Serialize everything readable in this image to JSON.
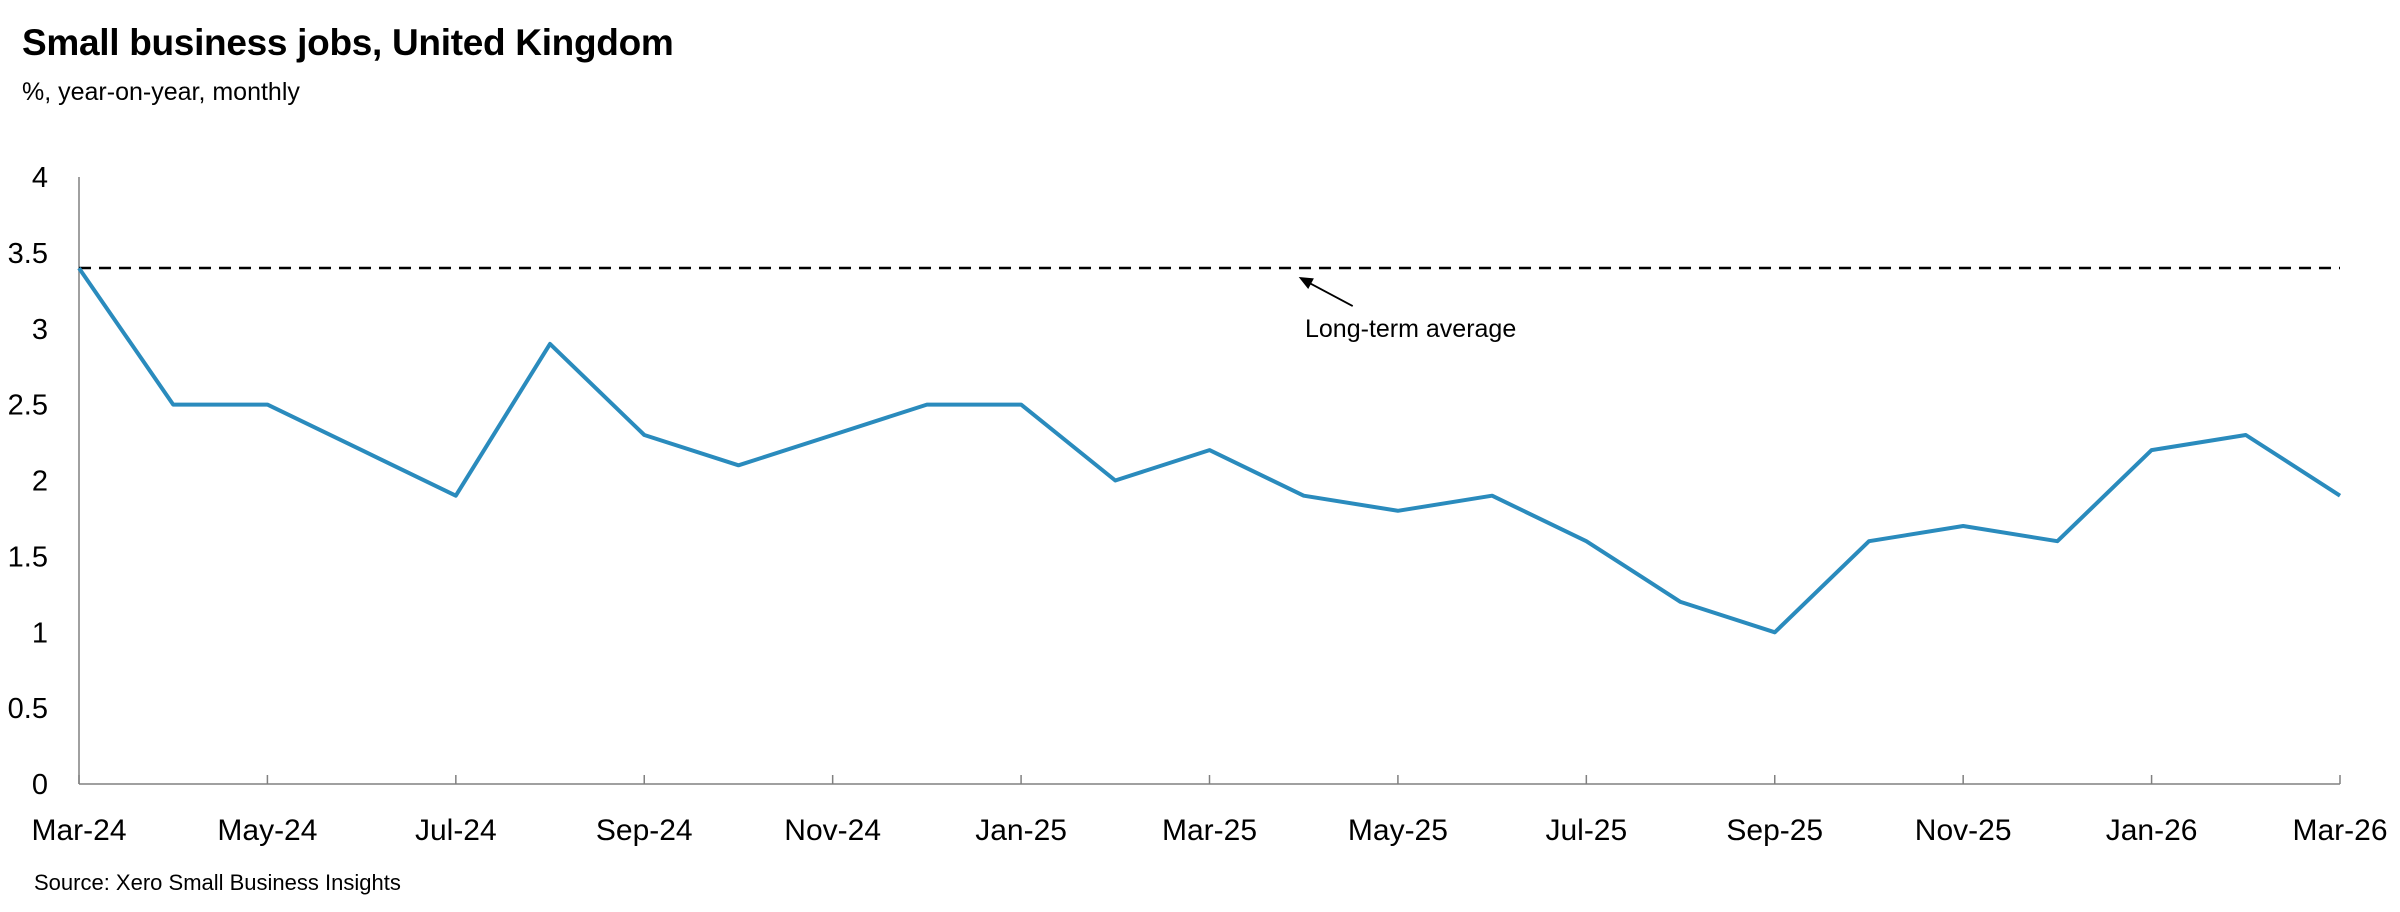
{
  "header": {
    "title": "Small business jobs, United Kingdom",
    "subtitle": "%, year-on-year, monthly"
  },
  "footer": {
    "source": "Source: Xero Small Business Insights"
  },
  "chart_data": {
    "type": "line",
    "title": "Small business jobs, United Kingdom",
    "subtitle": "%, year-on-year, monthly",
    "xlabel": "",
    "ylabel": "",
    "ylim": [
      0,
      4
    ],
    "yticks": [
      0,
      0.5,
      1,
      1.5,
      2,
      2.5,
      3,
      3.5,
      4
    ],
    "ytick_labels": [
      "0",
      "0.5",
      "1",
      "1.5",
      "2",
      "2.5",
      "3",
      "3.5",
      "4"
    ],
    "x": [
      "Mar-24",
      "Apr-24",
      "May-24",
      "Jun-24",
      "Jul-24",
      "Aug-24",
      "Sep-24",
      "Oct-24",
      "Nov-24",
      "Dec-24",
      "Jan-25",
      "Feb-25",
      "Mar-25",
      "Apr-25",
      "May-25",
      "Jun-25",
      "Jul-25",
      "Aug-25",
      "Sep-25",
      "Oct-25",
      "Nov-25",
      "Dec-25",
      "Jan-26",
      "Feb-26",
      "Mar-26"
    ],
    "xtick_labels": [
      "Mar-24",
      "May-24",
      "Jul-24",
      "Sep-24",
      "Nov-24",
      "Jan-25",
      "Mar-25",
      "May-25",
      "Jul-25",
      "Sep-25",
      "Nov-25",
      "Jan-26",
      "Mar-26"
    ],
    "series": [
      {
        "values": [
          3.4,
          2.5,
          2.5,
          2.2,
          1.9,
          2.9,
          2.3,
          2.1,
          2.3,
          2.5,
          2.5,
          2.0,
          2.2,
          1.9,
          1.8,
          1.9,
          1.6,
          1.2,
          1.0,
          1.6,
          1.7,
          1.6,
          2.2,
          2.3,
          1.9
        ],
        "color": "#2a8bbd"
      }
    ],
    "reference_line": {
      "value": 3.4,
      "label": "Long-term average",
      "style": "dashed",
      "color": "#000000"
    },
    "grid": false,
    "legend": "none"
  }
}
